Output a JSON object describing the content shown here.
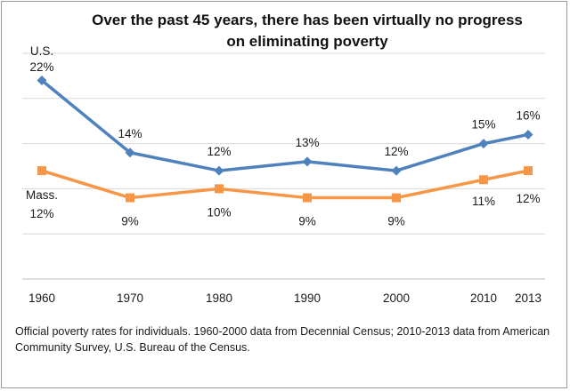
{
  "chart_data": {
    "type": "line",
    "title": "Over the past 45 years, there has been virtually no progress on eliminating poverty",
    "title_lines": [
      "Over the past 45 years, there has been virtually no progress",
      "on eliminating poverty"
    ],
    "x": [
      1960,
      1970,
      1980,
      1990,
      2000,
      2010,
      2013
    ],
    "x_tick_labels": [
      "1960",
      "1970",
      "1980",
      "1990",
      "2000",
      "2010",
      "2013"
    ],
    "ylim": [
      0,
      25
    ],
    "grid": true,
    "xlabel": "",
    "ylabel": "",
    "series": [
      {
        "name": "U.S.",
        "color": "#4f81bd",
        "marker": "diamond",
        "values": [
          22,
          14,
          12,
          13,
          12,
          15,
          16
        ],
        "labels": [
          "22%",
          "14%",
          "12%",
          "13%",
          "12%",
          "15%",
          "16%"
        ]
      },
      {
        "name": "Mass.",
        "color": "#f79646",
        "marker": "square",
        "values": [
          12,
          9,
          10,
          9,
          9,
          11,
          12
        ],
        "labels": [
          "12%",
          "9%",
          "10%",
          "9%",
          "9%",
          "11%",
          "12%"
        ]
      }
    ],
    "note": "Official poverty rates for individuals. 1960-2000 data from Decennial Census; 2010-2013 data from American Community Survey, U.S. Bureau of the Census."
  }
}
